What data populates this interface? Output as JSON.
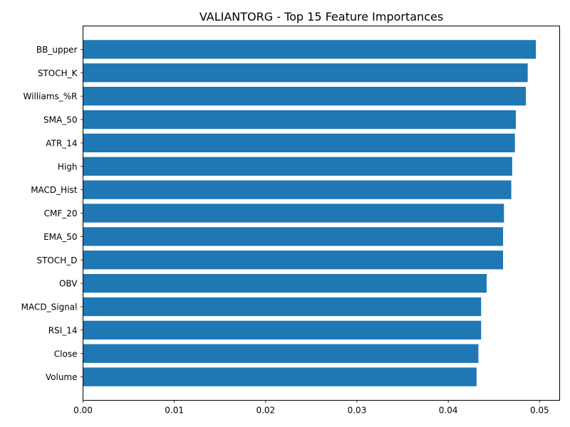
{
  "chart_data": {
    "type": "bar",
    "orientation": "horizontal",
    "title": "VALIANTORG - Top 15 Feature Importances",
    "xlabel": "",
    "ylabel": "",
    "categories": [
      "BB_upper",
      "STOCH_K",
      "Williams_%R",
      "SMA_50",
      "ATR_14",
      "High",
      "MACD_Hist",
      "CMF_20",
      "EMA_50",
      "STOCH_D",
      "OBV",
      "MACD_Signal",
      "RSI_14",
      "Close",
      "Volume"
    ],
    "values": [
      0.0496,
      0.0487,
      0.0485,
      0.0474,
      0.0473,
      0.047,
      0.0469,
      0.0461,
      0.046,
      0.046,
      0.0442,
      0.0436,
      0.0436,
      0.0433,
      0.0431
    ],
    "xlim": [
      0,
      0.0522
    ],
    "xticks": [
      0.0,
      0.01,
      0.02,
      0.03,
      0.04,
      0.05
    ],
    "xtick_labels": [
      "0.00",
      "0.01",
      "0.02",
      "0.03",
      "0.04",
      "0.05"
    ],
    "bar_color": "#1f77b4",
    "grid": false,
    "legend": "none"
  }
}
